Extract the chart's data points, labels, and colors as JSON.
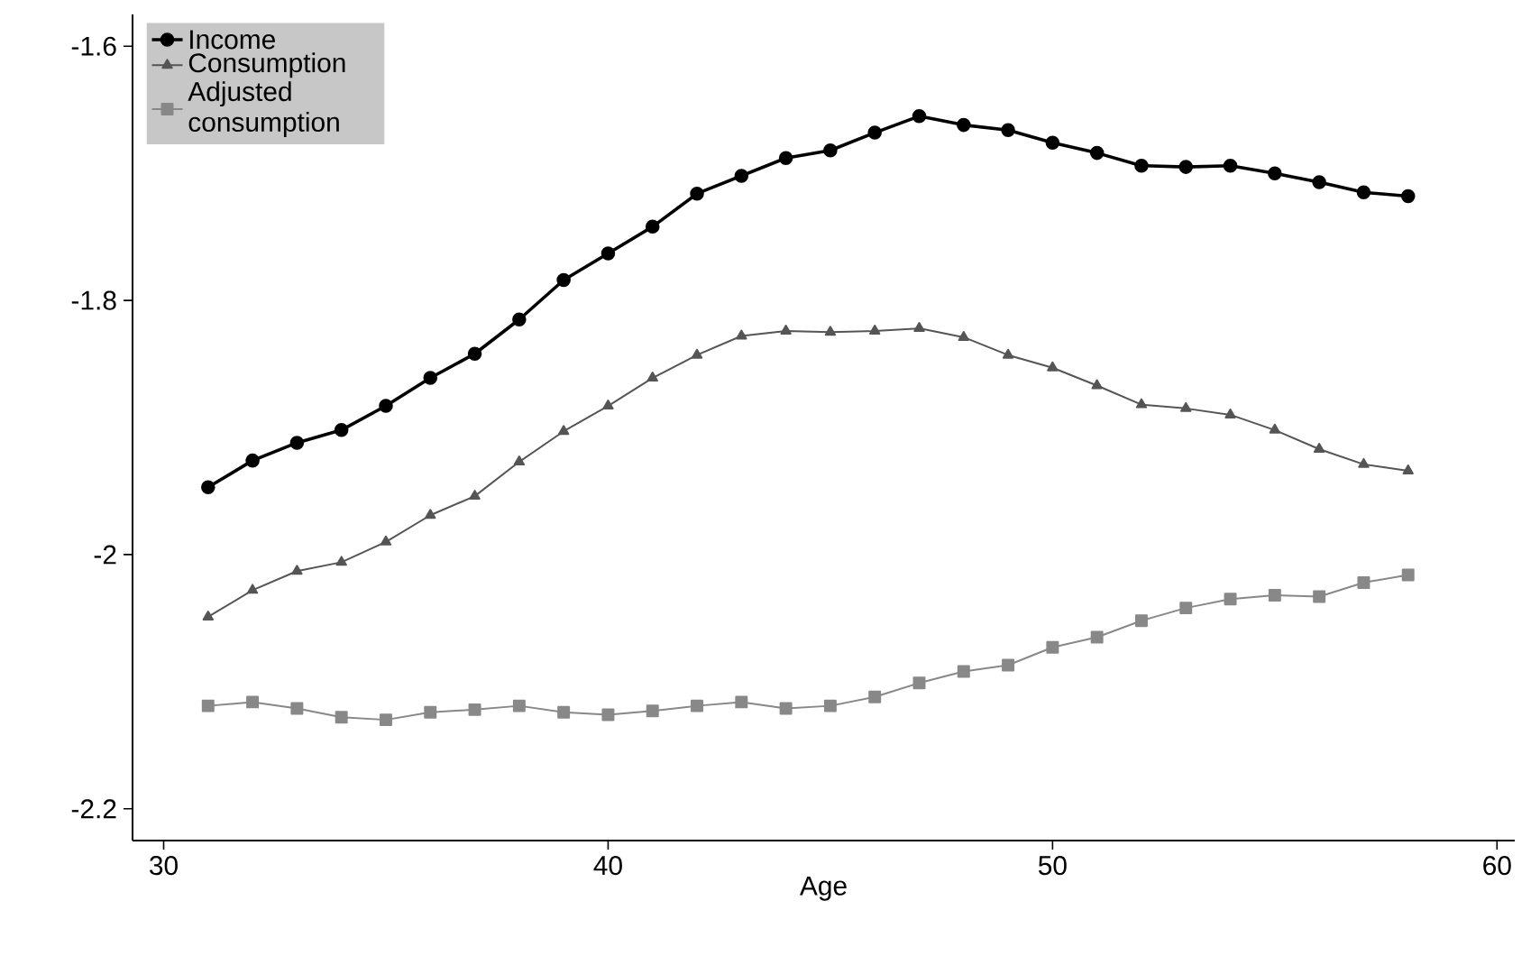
{
  "chart_data": {
    "type": "line",
    "xlabel": "Age",
    "xlim": [
      29.3,
      60.4
    ],
    "xticks": [
      30,
      40,
      50,
      60
    ],
    "ylim": [
      -2.225,
      -1.575
    ],
    "yticks": [
      -2.2,
      -2,
      -1.8,
      -1.6
    ],
    "grid": false,
    "legend": "top left",
    "series": [
      {
        "name": "Income",
        "color": "#000000",
        "marker": "circle",
        "x": [
          31,
          32,
          33,
          34,
          35,
          36,
          37,
          38,
          39,
          40,
          41,
          42,
          43,
          44,
          45,
          46,
          47,
          48,
          49,
          50,
          51,
          52,
          53,
          54,
          55,
          56,
          57,
          58
        ],
        "values": [
          -1.947,
          -1.926,
          -1.912,
          -1.902,
          -1.883,
          -1.861,
          -1.842,
          -1.815,
          -1.784,
          -1.763,
          -1.742,
          -1.716,
          -1.702,
          -1.688,
          -1.682,
          -1.668,
          -1.655,
          -1.662,
          -1.666,
          -1.676,
          -1.684,
          -1.694,
          -1.695,
          -1.694,
          -1.7,
          -1.707,
          -1.715,
          -1.718
        ]
      },
      {
        "name": "Consumption",
        "color": "#555555",
        "marker": "triangle",
        "x": [
          31,
          32,
          33,
          34,
          35,
          36,
          37,
          38,
          39,
          40,
          41,
          42,
          43,
          44,
          45,
          46,
          47,
          48,
          49,
          50,
          51,
          52,
          53,
          54,
          55,
          56,
          57,
          58
        ],
        "values": [
          -2.049,
          -2.028,
          -2.013,
          -2.006,
          -1.99,
          -1.969,
          -1.954,
          -1.927,
          -1.903,
          -1.883,
          -1.861,
          -1.843,
          -1.828,
          -1.824,
          -1.825,
          -1.824,
          -1.822,
          -1.829,
          -1.843,
          -1.853,
          -1.867,
          -1.882,
          -1.885,
          -1.89,
          -1.902,
          -1.917,
          -1.929,
          -1.934
        ]
      },
      {
        "name": "Adjusted consumption",
        "color": "#888888",
        "marker": "square",
        "x": [
          31,
          32,
          33,
          34,
          35,
          36,
          37,
          38,
          39,
          40,
          41,
          42,
          43,
          44,
          45,
          46,
          47,
          48,
          49,
          50,
          51,
          52,
          53,
          54,
          55,
          56,
          57,
          58
        ],
        "values": [
          -2.119,
          -2.116,
          -2.121,
          -2.128,
          -2.13,
          -2.124,
          -2.122,
          -2.119,
          -2.124,
          -2.126,
          -2.123,
          -2.119,
          -2.116,
          -2.121,
          -2.119,
          -2.112,
          -2.101,
          -2.092,
          -2.087,
          -2.073,
          -2.065,
          -2.052,
          -2.042,
          -2.035,
          -2.032,
          -2.033,
          -2.022,
          -2.016
        ]
      }
    ]
  }
}
